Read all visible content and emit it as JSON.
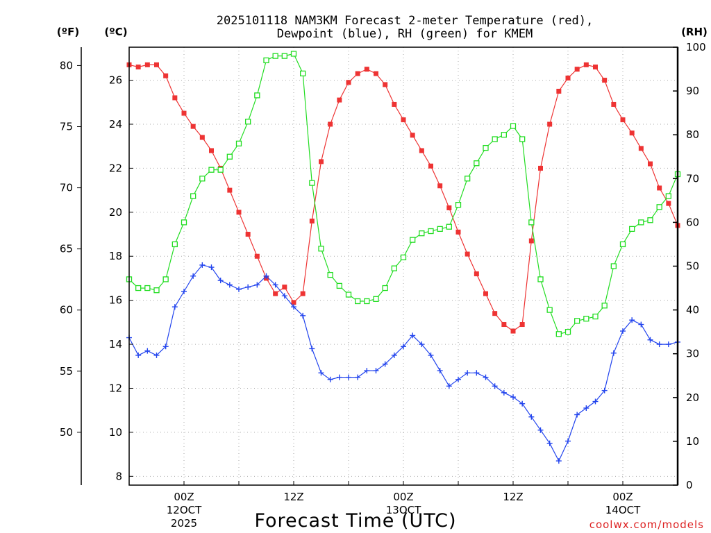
{
  "chart_data": {
    "type": "line",
    "title_line1": "2025101118 NAM3KM Forecast 2-meter Temperature (red),",
    "title_line2": "Dewpoint (blue), RH (green) for KMEM",
    "xlabel": "Forecast Time (UTC)",
    "credit": "coolwx.com/models",
    "units": {
      "fahrenheit": "(ºF)",
      "celsius": "(ºC)",
      "rh": "(RH)"
    },
    "x_hours": [
      18,
      19,
      20,
      21,
      22,
      23,
      24,
      25,
      26,
      27,
      28,
      29,
      30,
      31,
      32,
      33,
      34,
      35,
      36,
      37,
      38,
      39,
      40,
      41,
      42,
      43,
      44,
      45,
      46,
      47,
      48,
      49,
      50,
      51,
      52,
      53,
      54,
      55,
      56,
      57,
      58,
      59,
      60,
      61,
      62,
      63,
      64,
      65,
      66,
      67,
      68,
      69,
      70,
      71,
      72,
      73,
      74,
      75,
      76,
      77,
      78
    ],
    "x_ticks": [
      {
        "hour": 24,
        "label": "00Z",
        "date": "12OCT",
        "year": "2025"
      },
      {
        "hour": 36,
        "label": "12Z",
        "date": "",
        "year": ""
      },
      {
        "hour": 48,
        "label": "00Z",
        "date": "13OCT",
        "year": ""
      },
      {
        "hour": 60,
        "label": "12Z",
        "date": "",
        "year": ""
      },
      {
        "hour": 72,
        "label": "00Z",
        "date": "14OCT",
        "year": ""
      }
    ],
    "xlim": [
      18,
      78
    ],
    "y_left_celsius": {
      "ylim": [
        7.6,
        27.5
      ],
      "ticks": [
        "8",
        "10",
        "12",
        "14",
        "16",
        "18",
        "20",
        "22",
        "24",
        "26"
      ]
    },
    "y_left_fahrenheit": {
      "ticks": [
        "50",
        "55",
        "60",
        "65",
        "70",
        "75",
        "80"
      ]
    },
    "y_right_rh": {
      "ylim": [
        0,
        100
      ],
      "ticks": [
        "0",
        "10",
        "20",
        "30",
        "40",
        "50",
        "60",
        "70",
        "80",
        "90",
        "100"
      ]
    },
    "series": [
      {
        "name": "2-meter Temperature",
        "axis": "celsius",
        "color": "#ee3333",
        "marker": "filled-square",
        "values": [
          26.7,
          26.6,
          26.7,
          26.7,
          26.2,
          25.2,
          24.5,
          23.9,
          23.4,
          22.8,
          22.0,
          21.0,
          20.0,
          19.0,
          18.0,
          17.0,
          16.3,
          16.6,
          15.9,
          16.3,
          19.6,
          22.3,
          24.0,
          25.1,
          25.9,
          26.3,
          26.5,
          26.3,
          25.8,
          24.9,
          24.2,
          23.5,
          22.8,
          22.1,
          21.2,
          20.2,
          19.1,
          18.1,
          17.2,
          16.3,
          15.4,
          14.9,
          14.6,
          14.9,
          18.7,
          22.0,
          24.0,
          25.5,
          26.1,
          26.5,
          26.7,
          26.6,
          26.0,
          24.9,
          24.2,
          23.6,
          22.9,
          22.2,
          21.1,
          20.4,
          19.4
        ]
      },
      {
        "name": "Dewpoint",
        "axis": "celsius",
        "color": "#2244ee",
        "marker": "plus",
        "values": [
          14.3,
          13.5,
          13.7,
          13.5,
          13.9,
          15.7,
          16.4,
          17.1,
          17.6,
          17.5,
          16.9,
          16.7,
          16.5,
          16.6,
          16.7,
          17.1,
          16.7,
          16.2,
          15.7,
          15.3,
          13.8,
          12.7,
          12.4,
          12.5,
          12.5,
          12.5,
          12.8,
          12.8,
          13.1,
          13.5,
          13.9,
          14.4,
          14.0,
          13.5,
          12.8,
          12.1,
          12.4,
          12.7,
          12.7,
          12.5,
          12.1,
          11.8,
          11.6,
          11.3,
          10.7,
          10.1,
          9.5,
          8.7,
          9.6,
          10.8,
          11.1,
          11.4,
          11.9,
          13.6,
          14.6,
          15.1,
          14.9,
          14.2,
          14.0,
          14.0,
          14.1
        ]
      },
      {
        "name": "Relative Humidity",
        "axis": "rh",
        "color": "#22dd22",
        "marker": "open-square",
        "values": [
          47,
          45,
          45,
          44.5,
          47,
          55,
          60,
          66,
          70,
          72,
          72,
          75,
          78,
          83,
          89,
          97,
          98,
          98,
          98.5,
          94,
          69,
          54,
          48,
          45.5,
          43.5,
          42,
          42,
          42.5,
          45,
          49.5,
          52,
          56,
          57.5,
          58,
          58.5,
          59,
          64,
          70,
          73.5,
          77,
          79,
          80,
          82,
          79,
          60,
          47,
          40,
          34.5,
          35,
          37.5,
          38,
          38.5,
          41,
          50,
          55,
          58.5,
          60,
          60.5,
          63.5,
          66,
          71
        ]
      }
    ]
  }
}
